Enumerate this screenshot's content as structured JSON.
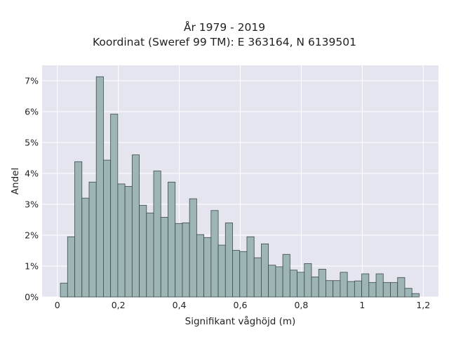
{
  "chart_data": {
    "type": "bar",
    "title": "År 1979 - 2019",
    "subtitle": "Koordinat (Sweref 99 TM): E 363164, N 6139501",
    "xlabel": "Signifikant våghöjd (m)",
    "ylabel": "Andel",
    "xlim": [
      -0.05,
      1.25
    ],
    "ylim": [
      0,
      7.5
    ],
    "x_ticks": [
      0,
      0.2,
      0.4,
      0.6,
      0.8,
      1,
      1.2
    ],
    "x_tick_labels": [
      "0",
      "0,2",
      "0,4",
      "0,6",
      "0,8",
      "1",
      "1,2"
    ],
    "y_ticks": [
      0,
      1,
      2,
      3,
      4,
      5,
      6,
      7
    ],
    "y_tick_labels": [
      "0%",
      "1%",
      "2%",
      "3%",
      "4%",
      "5%",
      "6%",
      "7%"
    ],
    "bin_start": 0.01,
    "bin_width": 0.02353,
    "values": [
      0.45,
      1.95,
      4.38,
      3.2,
      3.72,
      7.13,
      4.43,
      5.92,
      3.66,
      3.58,
      4.6,
      2.97,
      2.72,
      4.08,
      2.58,
      3.72,
      2.38,
      2.4,
      3.18,
      2.02,
      1.92,
      2.8,
      1.68,
      2.4,
      1.51,
      1.47,
      1.95,
      1.27,
      1.72,
      1.03,
      0.98,
      1.38,
      0.87,
      0.8,
      1.08,
      0.65,
      0.9,
      0.53,
      0.53,
      0.8,
      0.5,
      0.52,
      0.75,
      0.47,
      0.75,
      0.47,
      0.47,
      0.63,
      0.28,
      0.11
    ],
    "grid": true,
    "colors": {
      "plot_background": "#e5e5f0",
      "grid": "#ffffff",
      "bar_fill": "#9db5b5",
      "bar_edge": "#3d4a4a"
    }
  }
}
